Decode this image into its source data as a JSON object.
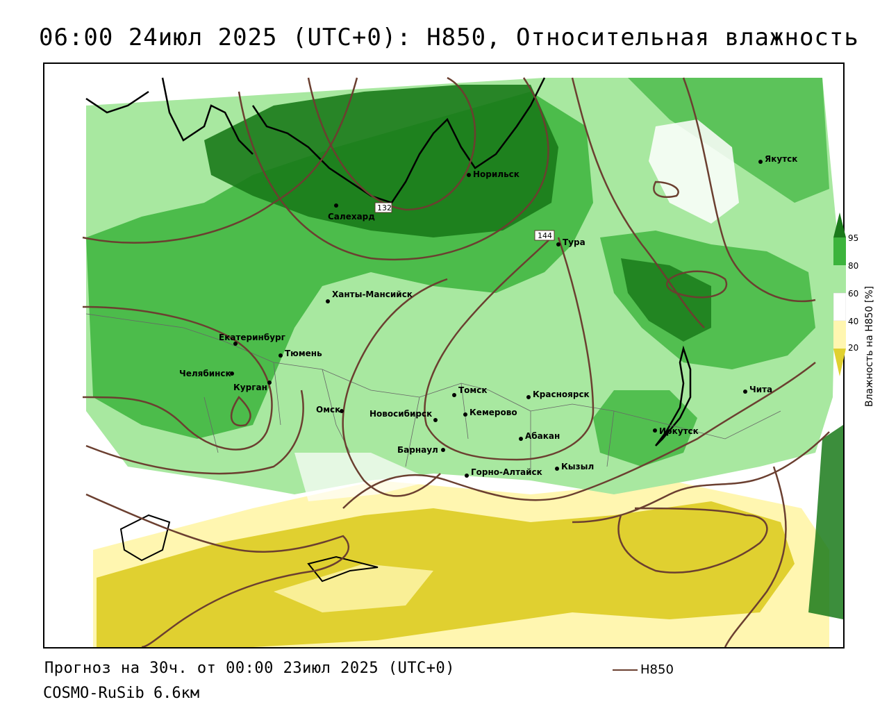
{
  "title": "06:00 24июл 2025 (UTC+0): H850, Относительная влажность",
  "footer": {
    "forecast": "Прогноз на 30ч. от 00:00 23июл 2025 (UTC+0)",
    "model": "COSMO-RuSib 6.6км",
    "legend_label": "H850"
  },
  "colorbar": {
    "title": "Влажность на H850 [%]",
    "ticks": [
      "95",
      "80",
      "60",
      "40",
      "20"
    ],
    "colors": {
      "c95": "#1a7a1a",
      "c80": "#3cb43c",
      "c60": "#a8e8a0",
      "c50": "#ffffff",
      "c40": "#fff6b0",
      "c20": "#e0d030"
    }
  },
  "contours": {
    "color": "#6b3f30",
    "labels": [
      "132",
      "144"
    ]
  },
  "cities": [
    {
      "name": "Якутск"
    },
    {
      "name": "Норильск"
    },
    {
      "name": "Салехард"
    },
    {
      "name": "Тура"
    },
    {
      "name": "Ханты-Мансийск"
    },
    {
      "name": "Екатеринбург"
    },
    {
      "name": "Тюмень"
    },
    {
      "name": "Челябинск"
    },
    {
      "name": "Курган"
    },
    {
      "name": "Омск"
    },
    {
      "name": "Новосибирск"
    },
    {
      "name": "Томск"
    },
    {
      "name": "Кемерово"
    },
    {
      "name": "Красноярск"
    },
    {
      "name": "Барнаул"
    },
    {
      "name": "Абакан"
    },
    {
      "name": "Горно-Алтайск"
    },
    {
      "name": "Кызыл"
    },
    {
      "name": "Иркутск"
    },
    {
      "name": "Чита"
    }
  ]
}
